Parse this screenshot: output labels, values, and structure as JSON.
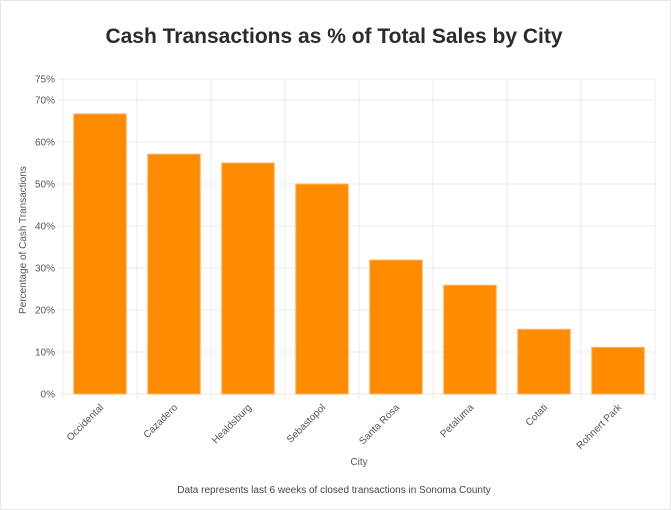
{
  "chart_data": {
    "type": "bar",
    "title": "Cash Transactions as % of Total Sales by City",
    "xlabel": "City",
    "ylabel": "Percentage of Cash Transactions",
    "footnote": "Data represents last 6 weeks of closed transactions in Sonoma County",
    "categories": [
      "Occidental",
      "Cazadero",
      "Healdsburg",
      "Sebastopol",
      "Santa Rosa",
      "Petaluma",
      "Cotati",
      "Rohnert Park"
    ],
    "values": [
      66.7,
      57.1,
      55.0,
      50.0,
      31.9,
      25.9,
      15.4,
      11.1
    ],
    "ylim": [
      0,
      75
    ],
    "yticks": [
      0,
      10,
      20,
      30,
      40,
      50,
      60,
      70,
      75
    ],
    "ytick_labels": [
      "0%",
      "10%",
      "20%",
      "30%",
      "40%",
      "50%",
      "60%",
      "70%",
      "75%"
    ],
    "grid": true,
    "legend": "none",
    "colors": {
      "bar_fill": "#ff8c00",
      "bar_border": "#ffb366"
    }
  }
}
